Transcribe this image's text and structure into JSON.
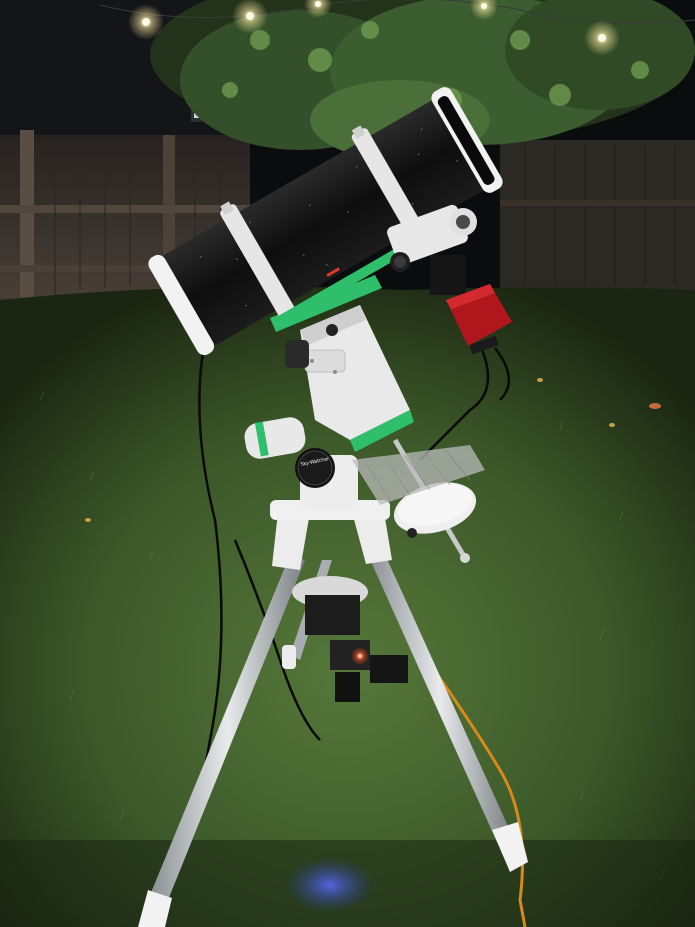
{
  "photo": {
    "subject": "telescope-on-equatorial-mount",
    "setting": "backyard-at-night",
    "mount_brand_label": "Sky-Watcher"
  },
  "colors": {
    "sky": "#0b0c0e",
    "fence": "#3a342e",
    "grass": "#3d5a2a",
    "tube": "#121212",
    "mount": "#e6e6e6",
    "camera": "#b0171c",
    "accent_band": "#2fbf6a",
    "cable_orange": "#d78a1a"
  }
}
